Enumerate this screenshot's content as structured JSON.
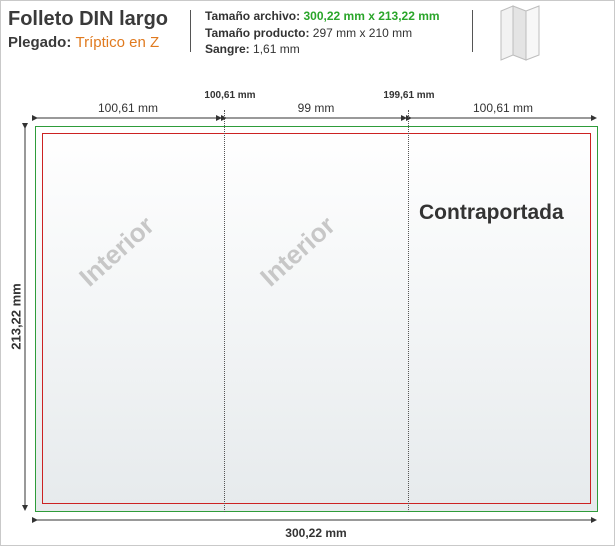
{
  "header": {
    "title": "Folleto DIN largo",
    "fold_label": "Plegado:",
    "fold_value": "Tríptico en Z"
  },
  "specs": {
    "file_size_label": "Tamaño archivo:",
    "file_size_value": "300,22 mm x 213,22 mm",
    "product_size_label": "Tamaño producto:",
    "product_size_value": "297 mm x 210 mm",
    "bleed_label": "Sangre:",
    "bleed_value": "1,61 mm"
  },
  "dimensions": {
    "panel_left": "100,61 mm",
    "panel_middle": "99 mm",
    "panel_right": "100,61 mm",
    "fold_1": "100,61 mm",
    "fold_2": "199,61 mm",
    "total_width": "300,22 mm",
    "total_height": "213,22 mm"
  },
  "panels": {
    "left": "Interior",
    "middle": "Interior",
    "right": "Contraportada"
  },
  "colors": {
    "bleed_line": "#2e9c3a",
    "trim_line": "#cc2222",
    "accent_orange": "#e07a1f",
    "accent_green": "#2aa52a"
  },
  "icons": {
    "folded_leaflet": "folded-leaflet-icon"
  }
}
